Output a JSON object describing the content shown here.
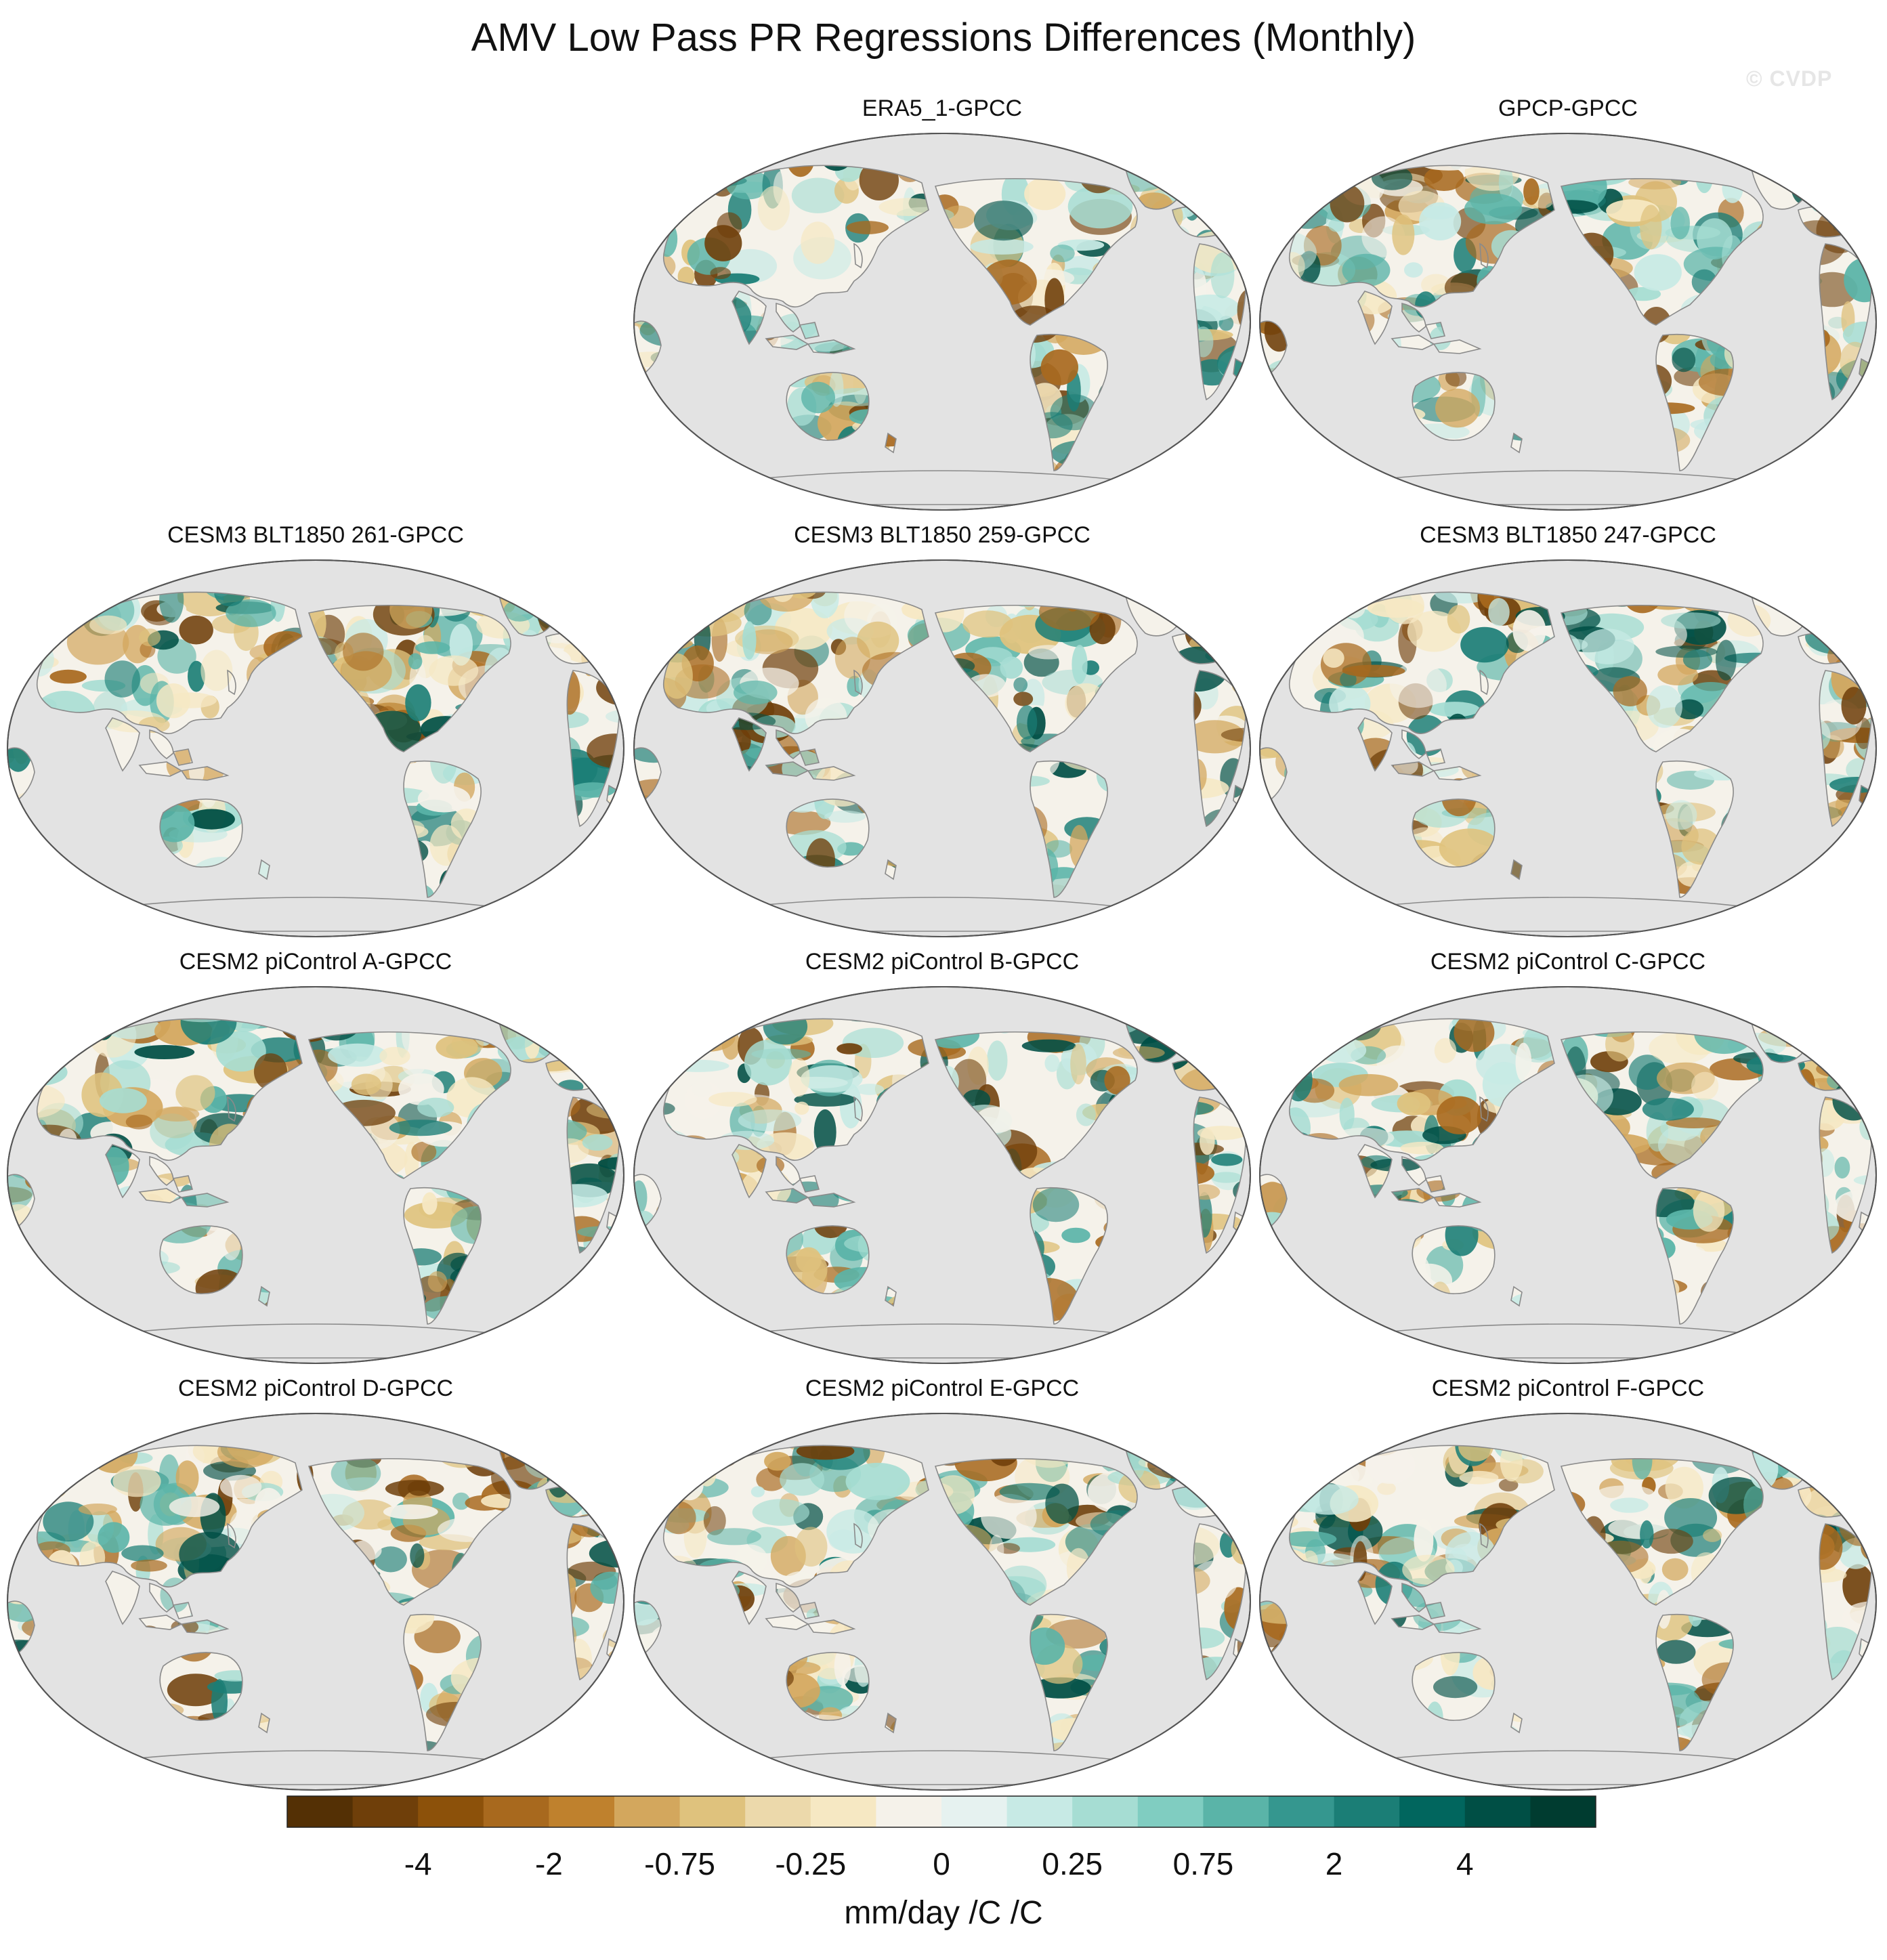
{
  "title": "AMV Low Pass PR Regressions Differences (Monthly)",
  "watermark": "© CVDP",
  "panels": [
    {
      "title": "ERA5_1-GPCC",
      "row": 0,
      "col": 1
    },
    {
      "title": "GPCP-GPCC",
      "row": 0,
      "col": 2
    },
    {
      "title": "CESM3 BLT1850 261-GPCC",
      "row": 1,
      "col": 0
    },
    {
      "title": "CESM3 BLT1850 259-GPCC",
      "row": 1,
      "col": 1
    },
    {
      "title": "CESM3 BLT1850 247-GPCC",
      "row": 1,
      "col": 2
    },
    {
      "title": "CESM2 piControl A-GPCC",
      "row": 2,
      "col": 0
    },
    {
      "title": "CESM2 piControl B-GPCC",
      "row": 2,
      "col": 1
    },
    {
      "title": "CESM2 piControl C-GPCC",
      "row": 2,
      "col": 2
    },
    {
      "title": "CESM2 piControl D-GPCC",
      "row": 3,
      "col": 0
    },
    {
      "title": "CESM2 piControl E-GPCC",
      "row": 3,
      "col": 1
    },
    {
      "title": "CESM2 piControl F-GPCC",
      "row": 3,
      "col": 2
    }
  ],
  "colorbar": {
    "label": "mm/day /C /C",
    "tick_labels": [
      "-4",
      "-2",
      "-0.75",
      "-0.25",
      "0",
      "0.25",
      "0.75",
      "2",
      "4"
    ],
    "colors": [
      "#543005",
      "#6f3f0a",
      "#8c510a",
      "#a8691e",
      "#bf812d",
      "#d3a75d",
      "#dfc27d",
      "#ecd9ab",
      "#f6e8c3",
      "#f5f2ea",
      "#e6f2f0",
      "#c7eae5",
      "#a6ddd3",
      "#80cdc1",
      "#5ab4a8",
      "#35978f",
      "#1b7e76",
      "#01665e",
      "#004f45",
      "#003c30"
    ]
  },
  "map_style": {
    "ocean": "#e3e3e3",
    "coast": "#8a8a8a",
    "projection": "Robinson-like, Pacific-centered"
  }
}
